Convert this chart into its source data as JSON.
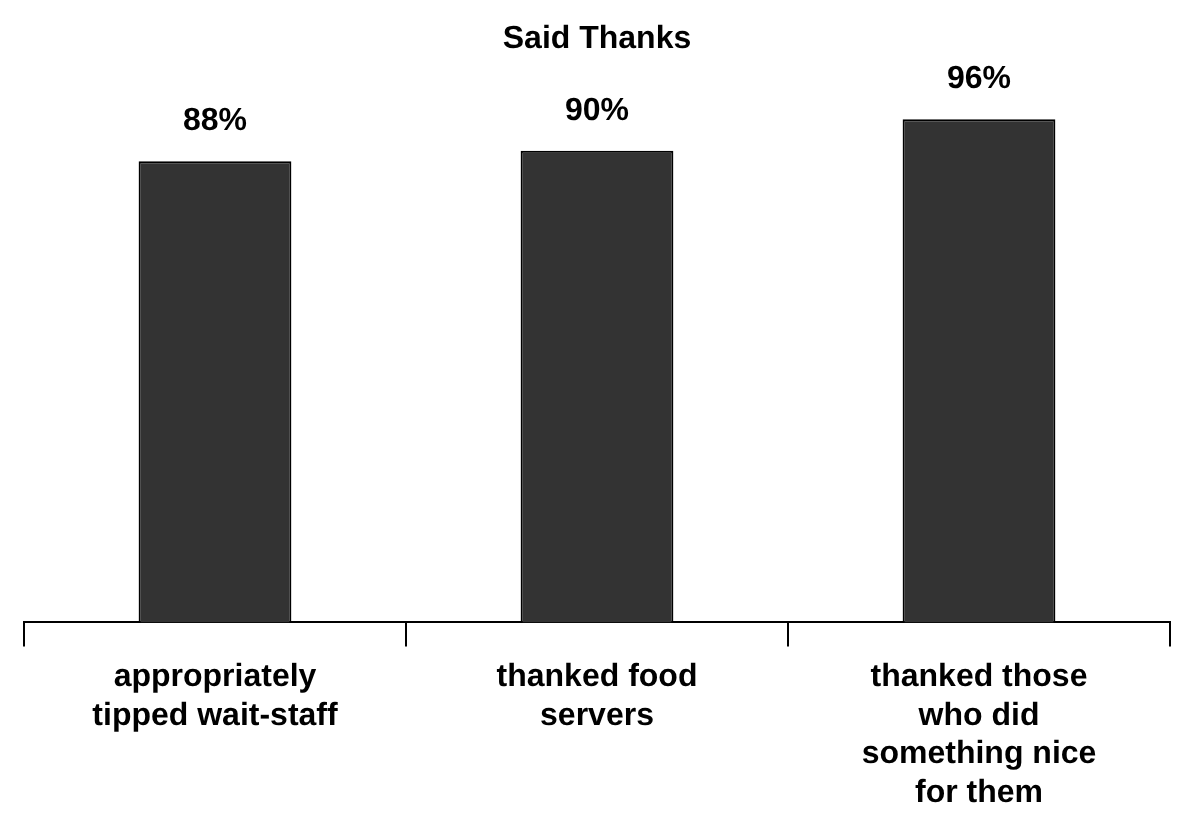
{
  "chart_data": {
    "type": "bar",
    "title": "Said Thanks",
    "categories": [
      "appropriately tipped wait-staff",
      "thanked food servers",
      "thanked those who did something nice for them"
    ],
    "values": [
      88,
      90,
      96
    ],
    "color": "#333333",
    "data_labels": true,
    "value_labels": [
      "88%",
      "90%",
      "96%"
    ],
    "grid": false,
    "legend": false
  }
}
